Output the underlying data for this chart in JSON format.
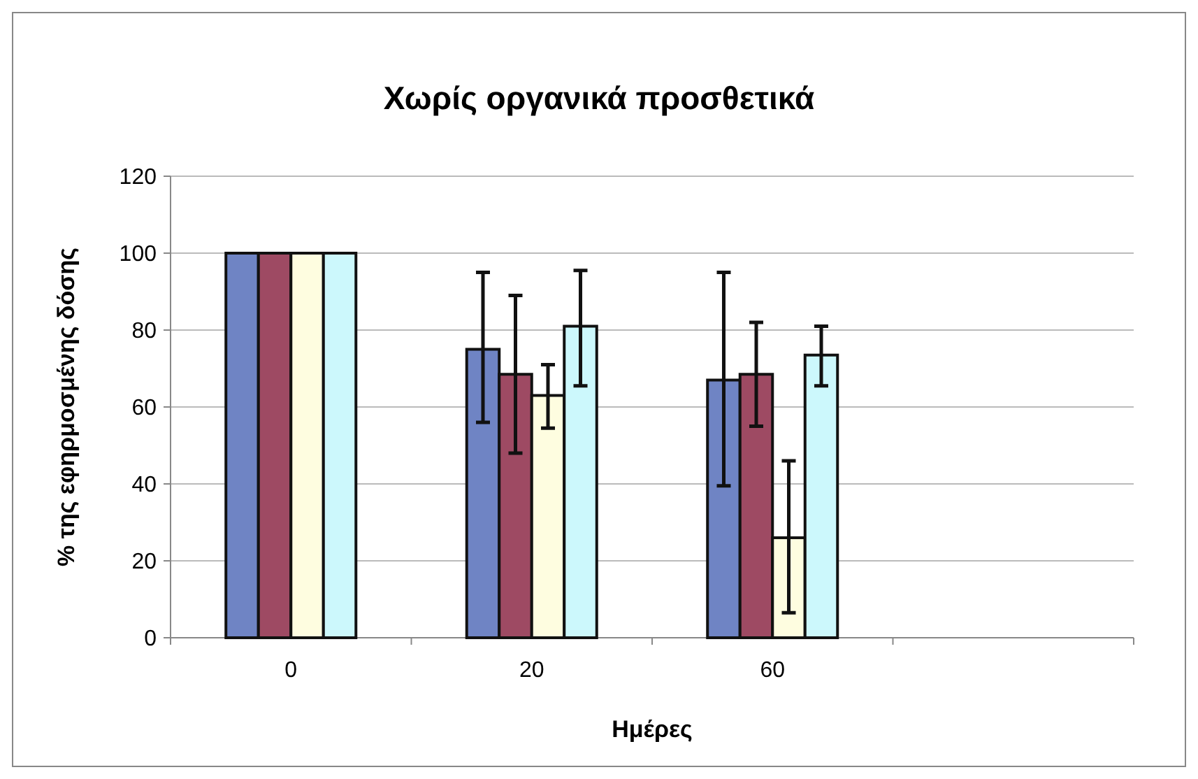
{
  "chart_data": {
    "type": "bar",
    "title": "Χωρίς οργανικά προσθετικά",
    "xlabel": "Ημέρες",
    "ylabel": "% της εφηρμοσμένης δόσης",
    "categories": [
      "0",
      "20",
      "60",
      null
    ],
    "series": [
      {
        "color": "#6f84c4",
        "values": [
          100,
          75,
          67,
          null
        ],
        "errors": [
          null,
          [
            56,
            95
          ],
          [
            39.5,
            95
          ],
          null
        ]
      },
      {
        "color": "#9e4a63",
        "values": [
          100,
          68.5,
          68.5,
          null
        ],
        "errors": [
          null,
          [
            48,
            89
          ],
          [
            55,
            82
          ],
          null
        ]
      },
      {
        "color": "#fefde0",
        "values": [
          100,
          63,
          26,
          null
        ],
        "errors": [
          null,
          [
            54.5,
            71
          ],
          [
            6.5,
            46
          ],
          null
        ]
      },
      {
        "color": "#ccf8fc",
        "values": [
          100,
          81,
          73.5,
          null
        ],
        "errors": [
          null,
          [
            65.5,
            95.5
          ],
          [
            65.5,
            81
          ],
          null
        ]
      }
    ],
    "ylim": [
      0,
      120
    ],
    "yticks": [
      0,
      20,
      40,
      60,
      80,
      100,
      120
    ],
    "grid": "y"
  }
}
